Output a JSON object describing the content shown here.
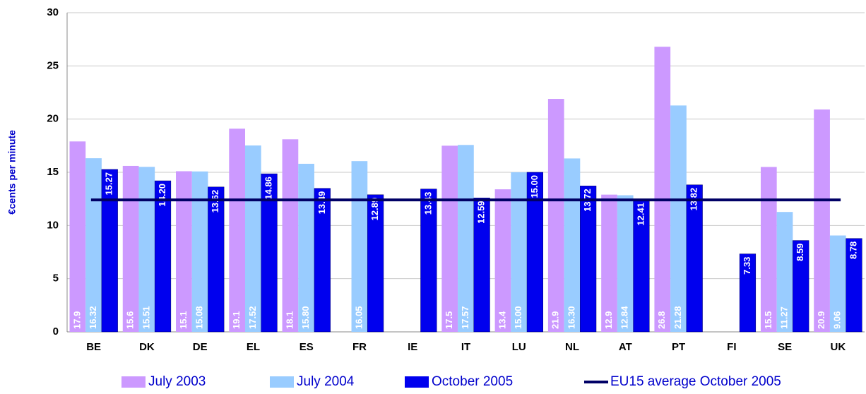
{
  "chart_data": {
    "type": "bar",
    "y_label": "€cents per minute",
    "categories": [
      "BE",
      "DK",
      "DE",
      "EL",
      "ES",
      "FR",
      "IE",
      "IT",
      "LU",
      "NL",
      "AT",
      "PT",
      "FI",
      "SE",
      "UK"
    ],
    "series": [
      {
        "name": "July 2003",
        "color": "#cc99ff",
        "label_pos": "bottom",
        "values": [
          17.9,
          15.6,
          15.1,
          19.1,
          18.1,
          null,
          null,
          17.5,
          13.4,
          21.9,
          12.9,
          26.8,
          null,
          15.5,
          20.9
        ]
      },
      {
        "name": "July 2004",
        "color": "#99ccff",
        "label_pos": "bottom",
        "values": [
          16.32,
          15.51,
          15.08,
          17.52,
          15.8,
          16.05,
          null,
          17.57,
          15,
          16.3,
          12.84,
          21.28,
          null,
          11.27,
          9.06
        ],
        "value_labels": [
          "16.32",
          "15.51",
          "15.08",
          "17.52",
          "15.80",
          "16.05",
          null,
          "17.57",
          "15.00",
          "16.30",
          "12.84",
          "21.28",
          null,
          "11.27",
          "9.06"
        ]
      },
      {
        "name": "October 2005",
        "color": "#0000ee",
        "label_pos": "top",
        "values": [
          15.27,
          14.2,
          13.62,
          14.86,
          13.49,
          12.89,
          13.43,
          12.59,
          15,
          13.72,
          12.41,
          13.82,
          7.33,
          8.59,
          8.78
        ],
        "value_labels": [
          "15.27",
          "14.20",
          "13.62",
          "14.86",
          "13.49",
          "12.89",
          "13.43",
          "12.59",
          "15.00",
          "13.72",
          "12.41",
          "13.82",
          "7.33",
          "8.59",
          "8.78"
        ]
      }
    ],
    "reference_line": {
      "name": "EU15 average October 2005",
      "value": 12.4,
      "color": "#000066"
    },
    "ylim": [
      0,
      30
    ],
    "yticks": [
      0,
      5,
      10,
      15,
      20,
      25,
      30
    ],
    "grid": true
  }
}
